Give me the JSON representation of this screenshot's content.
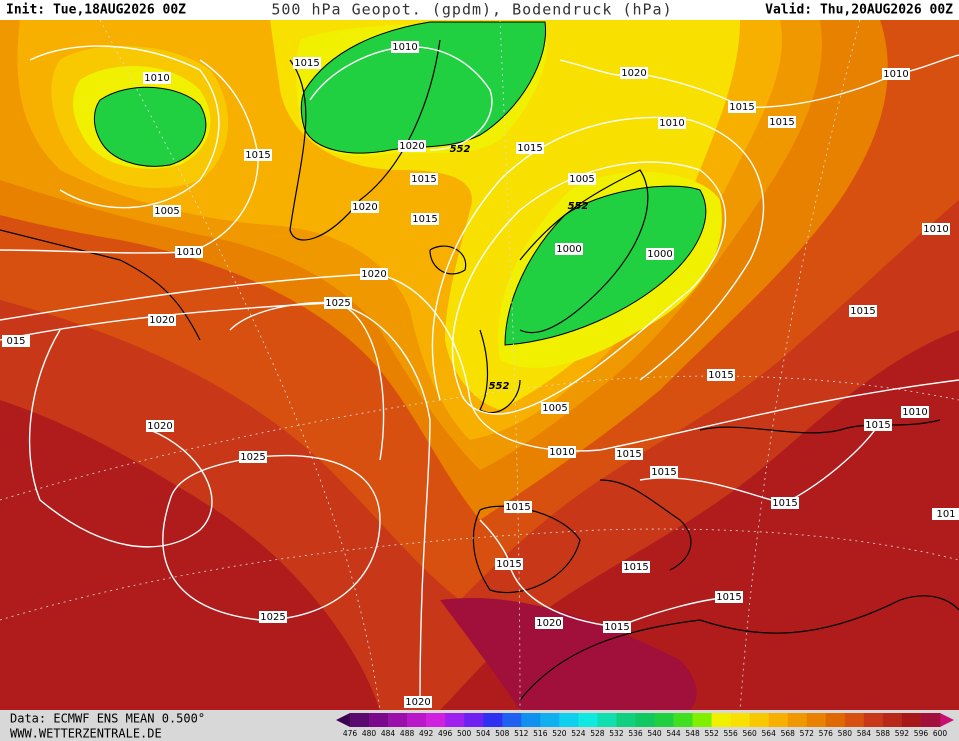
{
  "header": {
    "init": "Init: Tue,18AUG2026 00Z",
    "title": "500 hPa Geopot. (gpdm), Bodendruck (hPa)",
    "valid": "Valid: Thu,20AUG2026 00Z"
  },
  "isobars": {
    "labels": [
      "1010",
      "1015",
      "1010",
      "1020",
      "1010",
      "1015",
      "1015",
      "1010",
      "1015",
      "1020",
      "1015",
      "1015",
      "1005",
      "1005",
      "1020",
      "1015",
      "1010",
      "1000",
      "1000",
      "1010",
      "1020",
      "1025",
      "1020",
      "1015",
      "015",
      "1015",
      "1005",
      "1010",
      "1020",
      "1015",
      "1010",
      "1015",
      "1025",
      "1015",
      "1015",
      "1015",
      "101",
      "1015",
      "1015",
      "1015",
      "1025",
      "1020",
      "1015",
      "1020"
    ]
  },
  "contours": {
    "labels": [
      "552",
      "552",
      "552"
    ]
  },
  "colorbar": {
    "labels": [
      476,
      480,
      484,
      488,
      492,
      496,
      500,
      504,
      508,
      512,
      516,
      520,
      524,
      528,
      532,
      536,
      540,
      544,
      548,
      552,
      556,
      560,
      564,
      568,
      572,
      576,
      580,
      584,
      588,
      592,
      596,
      600
    ],
    "colors": [
      "#5a0a6e",
      "#7a0a8c",
      "#9a10aa",
      "#b818c8",
      "#d020e0",
      "#a020f0",
      "#7020f0",
      "#3030f0",
      "#2060f0",
      "#1090f0",
      "#10b0f0",
      "#10d0f0",
      "#10e8e0",
      "#10e0b0",
      "#10d080",
      "#10c860",
      "#20d040",
      "#40e020",
      "#80f000",
      "#f0f000",
      "#f8e000",
      "#f8c800",
      "#f8b000",
      "#f09800",
      "#e88000",
      "#e06800",
      "#d85010",
      "#c83818",
      "#b82818",
      "#a81818",
      "#a0103a"
    ]
  },
  "footer": {
    "data": "Data: ECMWF ENS MEAN 0.500°",
    "site": "WWW.WETTERZENTRALE.DE"
  }
}
